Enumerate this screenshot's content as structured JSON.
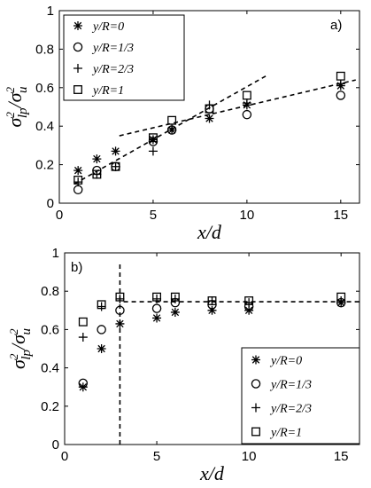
{
  "chart_data": [
    {
      "type": "scatter",
      "panel_label": "a)",
      "xlabel": "x/d",
      "ylabel": "σ²_lp/σ²_u",
      "xlim": [
        0,
        16
      ],
      "ylim": [
        0,
        1
      ],
      "xticks": [
        0,
        5,
        10,
        15
      ],
      "yticks": [
        0,
        0.2,
        0.4,
        0.6,
        0.8,
        1
      ],
      "ytick_labels": [
        "0",
        "0.2",
        "0.4",
        "0.6",
        "0.8",
        "1"
      ],
      "legend": "top-left",
      "series": [
        {
          "name": "y/R=0",
          "marker": "asterisk",
          "x": [
            1,
            2,
            3,
            5,
            6,
            8,
            10,
            15
          ],
          "y": [
            0.17,
            0.23,
            0.27,
            0.33,
            0.38,
            0.44,
            0.51,
            0.61
          ]
        },
        {
          "name": "y/R=1/3",
          "marker": "circle",
          "x": [
            1,
            2,
            3,
            5,
            6,
            8,
            10,
            15
          ],
          "y": [
            0.07,
            0.17,
            0.19,
            0.32,
            0.38,
            0.49,
            0.46,
            0.56
          ]
        },
        {
          "name": "y/R=2/3",
          "marker": "plus",
          "x": [
            1,
            2,
            3,
            5,
            6,
            8,
            10,
            15
          ],
          "y": [
            0.11,
            0.15,
            0.19,
            0.27,
            0.39,
            0.51,
            0.52,
            0.62
          ]
        },
        {
          "name": "y/R=1",
          "marker": "square",
          "x": [
            1,
            2,
            3,
            5,
            6,
            8,
            10,
            15
          ],
          "y": [
            0.12,
            0.15,
            0.19,
            0.34,
            0.43,
            0.49,
            0.56,
            0.66
          ]
        }
      ],
      "fit_lines": [
        {
          "x": [
            0.8,
            11
          ],
          "y": [
            0.1,
            0.66
          ]
        },
        {
          "x": [
            3.2,
            15.8
          ],
          "y": [
            0.35,
            0.64
          ]
        }
      ]
    },
    {
      "type": "scatter",
      "panel_label": "b)",
      "xlabel": "x/d",
      "ylabel": "σ²_lp/σ²_u",
      "xlim": [
        0,
        16
      ],
      "ylim": [
        0,
        1
      ],
      "xticks": [
        0,
        5,
        10,
        15
      ],
      "yticks": [
        0,
        0.2,
        0.4,
        0.6,
        0.8,
        1
      ],
      "ytick_labels": [
        "0",
        "0.2",
        "0.4",
        "0.6",
        "0.8",
        "1"
      ],
      "legend": "bottom-right",
      "series": [
        {
          "name": "y/R=0",
          "marker": "asterisk",
          "x": [
            1,
            2,
            3,
            5,
            6,
            8,
            10,
            15
          ],
          "y": [
            0.3,
            0.5,
            0.63,
            0.66,
            0.69,
            0.7,
            0.7,
            0.74
          ]
        },
        {
          "name": "y/R=1/3",
          "marker": "circle",
          "x": [
            1,
            2,
            3,
            5,
            6,
            8,
            10,
            15
          ],
          "y": [
            0.32,
            0.6,
            0.7,
            0.71,
            0.74,
            0.73,
            0.72,
            0.74
          ]
        },
        {
          "name": "y/R=2/3",
          "marker": "plus",
          "x": [
            1,
            2,
            3,
            5,
            6,
            8,
            10,
            15
          ],
          "y": [
            0.56,
            0.72,
            0.76,
            0.76,
            0.76,
            0.75,
            0.74,
            0.75
          ]
        },
        {
          "name": "y/R=1",
          "marker": "square",
          "x": [
            1,
            2,
            3,
            5,
            6,
            8,
            10,
            15
          ],
          "y": [
            0.64,
            0.73,
            0.77,
            0.77,
            0.77,
            0.75,
            0.75,
            0.77
          ]
        }
      ],
      "fit_lines": [
        {
          "x": [
            3.2,
            16
          ],
          "y": [
            0.745,
            0.745
          ]
        },
        {
          "x": [
            3,
            3
          ],
          "y": [
            0,
            0.95
          ]
        }
      ]
    }
  ]
}
